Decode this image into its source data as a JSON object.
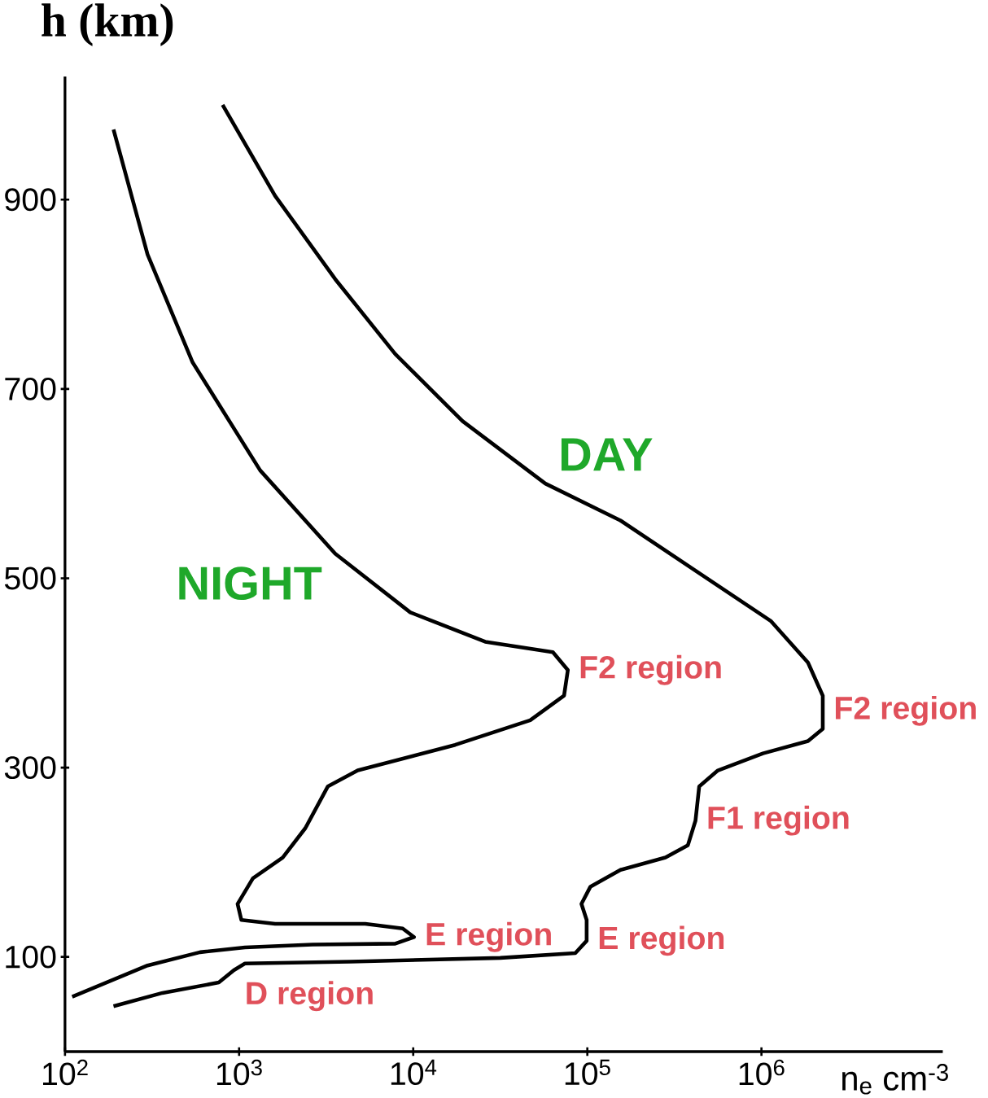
{
  "chart_data": {
    "type": "line",
    "log": "x",
    "ylabel": "h (km)",
    "xlabel": "n$_{e}$ cm$^{-3}$",
    "xlim": [
      100,
      11000000
    ],
    "ylim": [
      0,
      1030
    ],
    "xticks": [
      {
        "value": 100,
        "label": "10$^{2}$"
      },
      {
        "value": 1000,
        "label": "10$^{3}$"
      },
      {
        "value": 10000,
        "label": "10$^{4}$"
      },
      {
        "value": 100000,
        "label": "10$^{5}$"
      },
      {
        "value": 1000000,
        "label": "10$^{6}$"
      }
    ],
    "yticks": [
      100,
      300,
      500,
      700,
      900
    ],
    "grid": false,
    "marker": "none",
    "line_style": "solid",
    "series": [
      {
        "name": "NIGHT",
        "color": "#000000",
        "x": [
          190,
          298,
          541,
          1321,
          3565,
          9620,
          25900,
          63400,
          77300,
          73500,
          47000,
          17400,
          4800,
          3230,
          2400,
          1780,
          1200,
          980,
          1030,
          1610,
          5300,
          8700,
          10100,
          7880,
          2640,
          1080,
          597,
          298,
          110
        ],
        "values": [
          974,
          842,
          728,
          614,
          526,
          464,
          433,
          422,
          403,
          376,
          350,
          324,
          297,
          280,
          236,
          205,
          183,
          156,
          139,
          135,
          135,
          130,
          121,
          114,
          113,
          110,
          105,
          91,
          58
        ]
      },
      {
        "name": "DAY",
        "color": "#000000",
        "x": [
          804,
          1610,
          3565,
          7880,
          19200,
          57400,
          155000,
          418000,
          1130000,
          1850000,
          2250000,
          2250000,
          1850000,
          1020000,
          562000,
          439000,
          418000,
          378000,
          281000,
          155000,
          104000,
          92500,
          99100,
          99100,
          85300,
          31600,
          4350,
          1080,
          933,
          765,
          363,
          190
        ],
        "values": [
          1000,
          904,
          816,
          737,
          666,
          600,
          561,
          508,
          455,
          411,
          376,
          341,
          328,
          315,
          297,
          280,
          244,
          218,
          205,
          192,
          174,
          156,
          139,
          117,
          104,
          99,
          95,
          93,
          86,
          73,
          62,
          48
        ]
      }
    ],
    "annotations": [
      {
        "text": "F2 region",
        "x": 77300,
        "y": 403
      },
      {
        "text": "E region",
        "x": 10100,
        "y": 121
      },
      {
        "text": "D region",
        "x": 933,
        "y": 86
      },
      {
        "text": "F2 region",
        "x": 2250000,
        "y": 360
      },
      {
        "text": "F1 region",
        "x": 418000,
        "y": 244
      },
      {
        "text": "E region",
        "x": 99100,
        "y": 117
      }
    ]
  }
}
